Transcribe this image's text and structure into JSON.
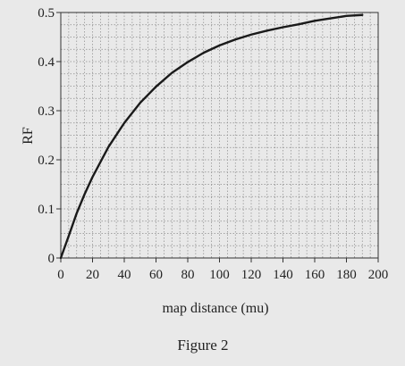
{
  "chart_data": {
    "type": "line",
    "title": "",
    "caption": "Figure 2",
    "xlabel": "map distance (mu)",
    "ylabel": "RF",
    "xlim": [
      0,
      200
    ],
    "ylim": [
      0,
      0.5
    ],
    "x_ticks": [
      0,
      20,
      40,
      60,
      80,
      100,
      120,
      140,
      160,
      180,
      200
    ],
    "y_ticks": [
      0,
      0.1,
      0.2,
      0.3,
      0.4,
      0.5
    ],
    "x_tick_labels": [
      "0",
      "20",
      "40",
      "60",
      "80",
      "100",
      "120",
      "140",
      "160",
      "180",
      "200"
    ],
    "y_tick_labels": [
      "0",
      "0.1",
      "0.2",
      "0.3",
      "0.4",
      "0.5"
    ],
    "grid": true,
    "series": [
      {
        "x": [
          0,
          5,
          10,
          15,
          20,
          30,
          40,
          50,
          60,
          70,
          80,
          90,
          100,
          110,
          120,
          130,
          140,
          150,
          160,
          170,
          180,
          190
        ],
        "values": [
          0.0,
          0.045,
          0.091,
          0.13,
          0.165,
          0.226,
          0.275,
          0.316,
          0.349,
          0.377,
          0.399,
          0.418,
          0.433,
          0.445,
          0.455,
          0.463,
          0.47,
          0.476,
          0.483,
          0.488,
          0.493,
          0.495
        ]
      }
    ]
  }
}
